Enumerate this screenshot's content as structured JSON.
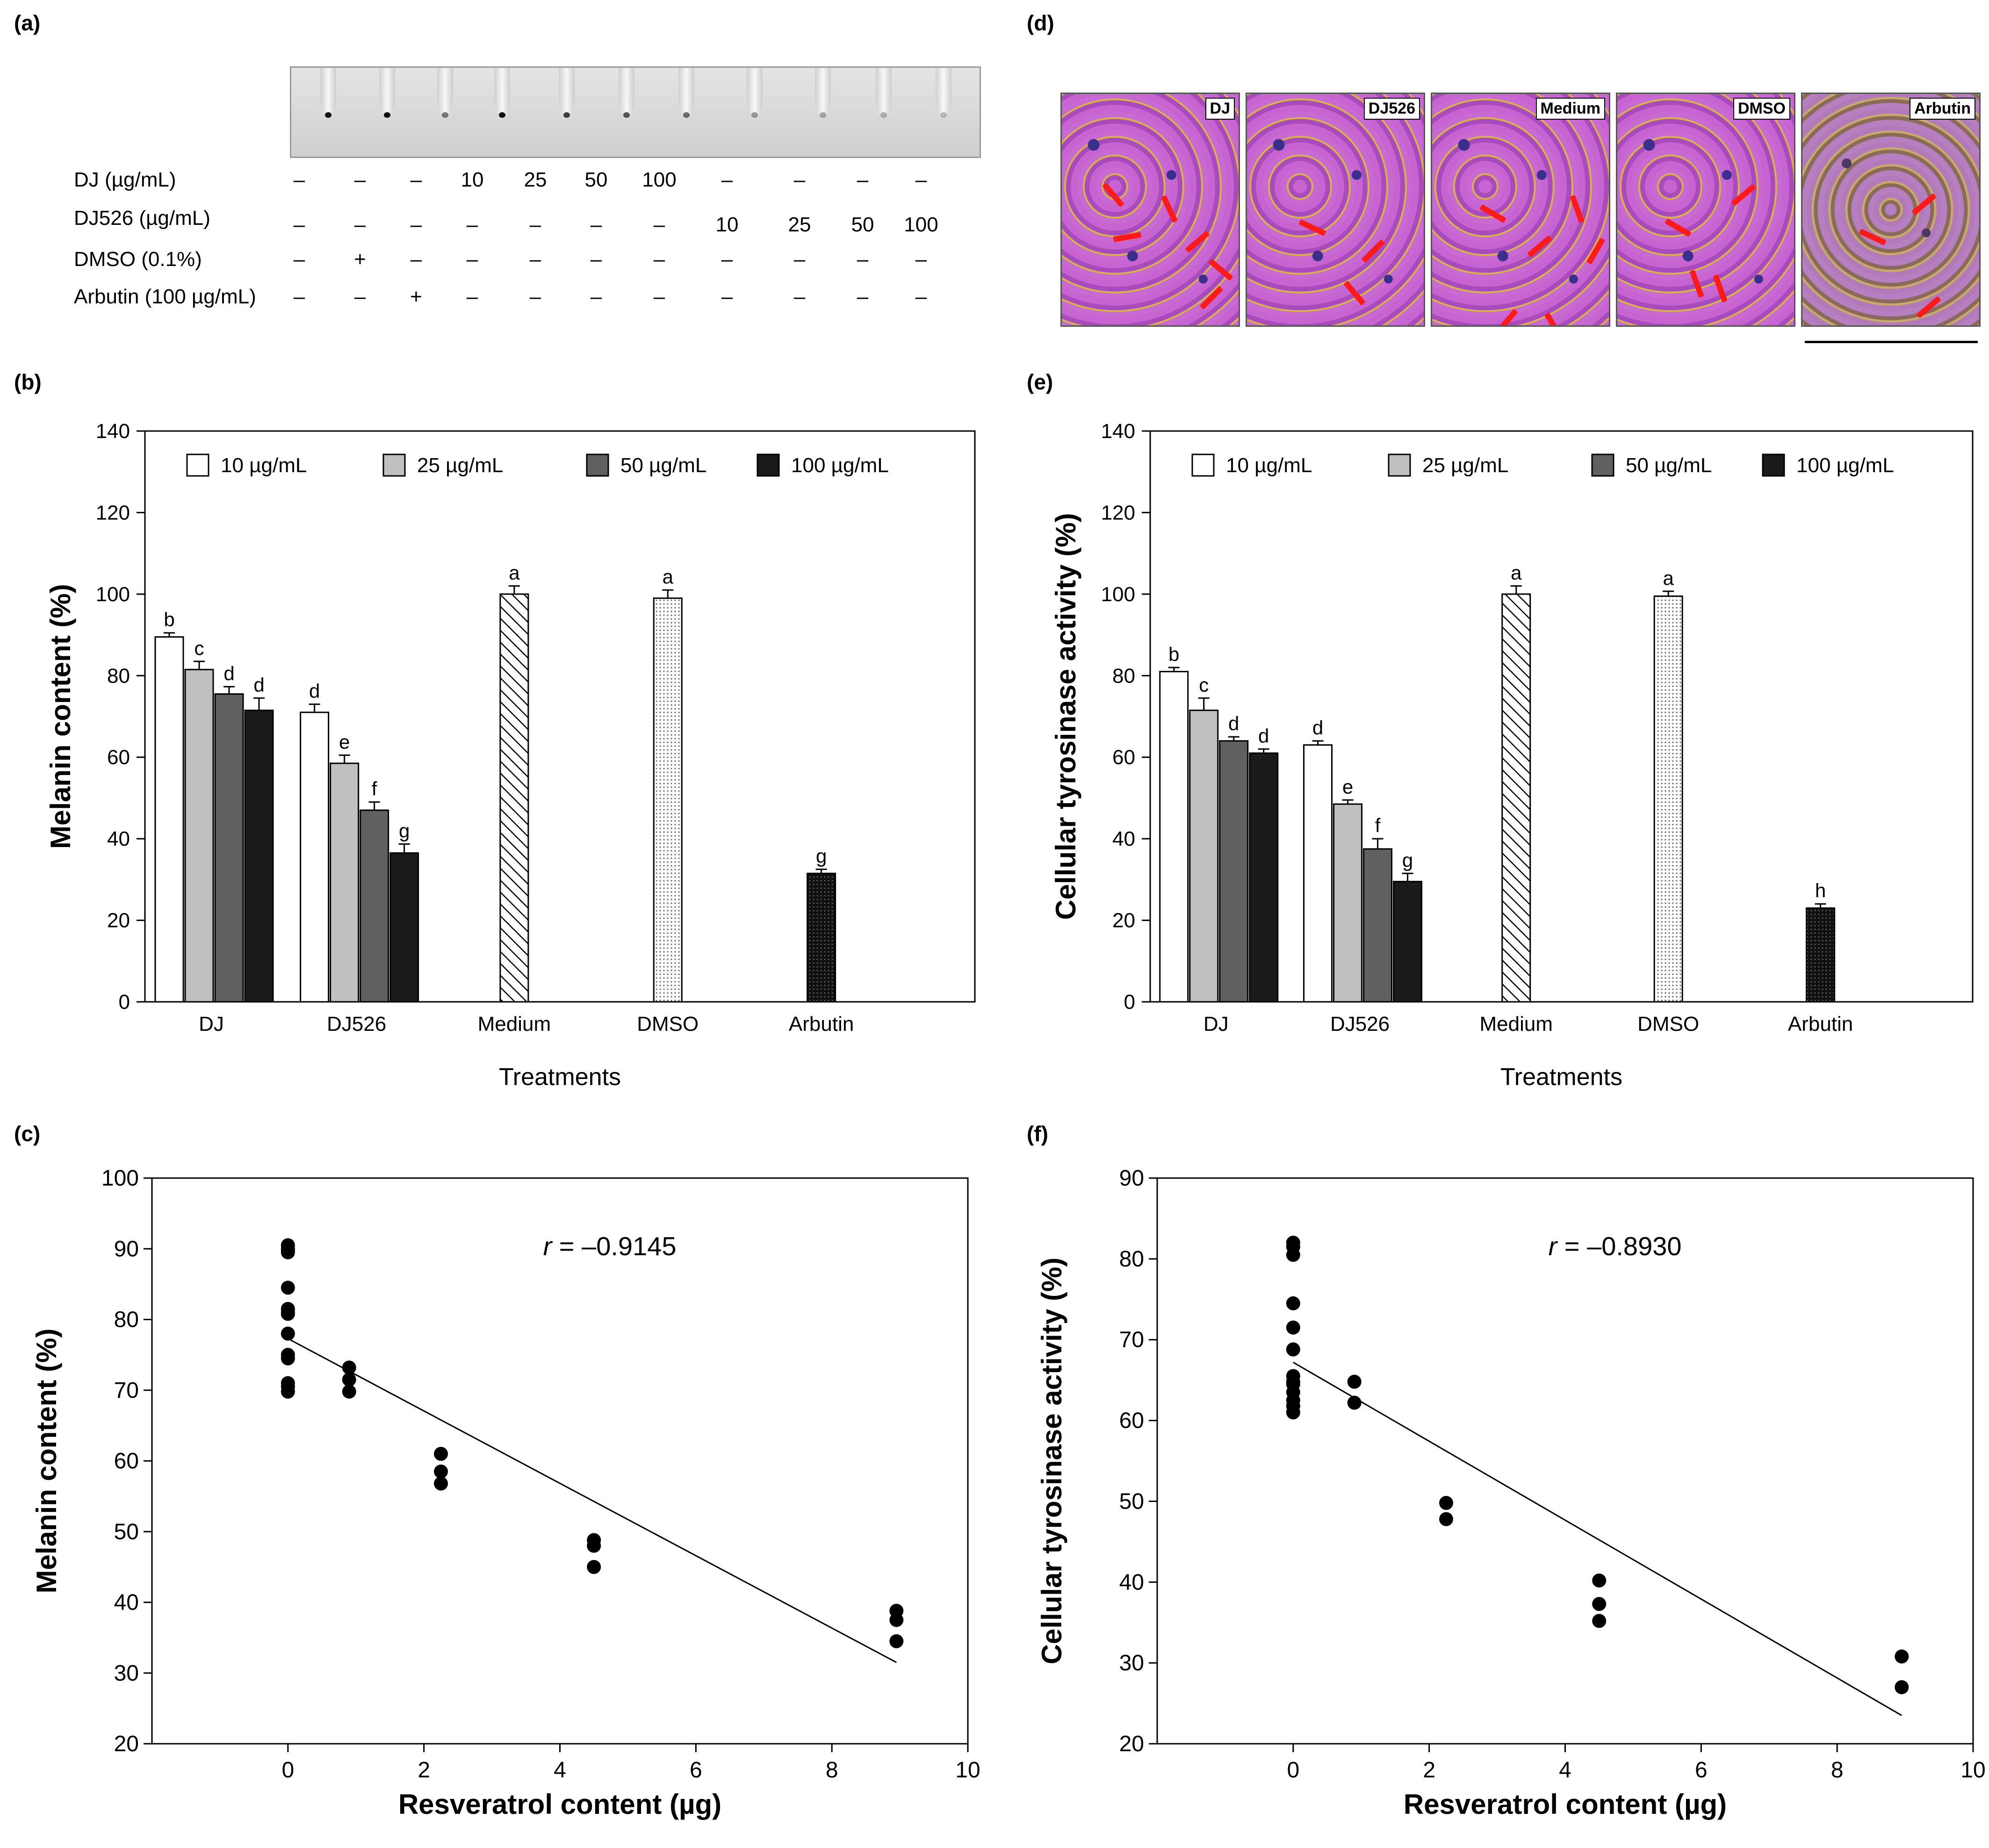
{
  "panel_labels": {
    "a": "(a)",
    "b": "(b)",
    "c": "(c)",
    "d": "(d)",
    "e": "(e)",
    "f": "(f)"
  },
  "tube_table": {
    "rows": [
      {
        "label": "DJ (µg/mL)",
        "cells": [
          "–",
          "–",
          "–",
          "10",
          "25",
          "50",
          "100",
          "–",
          "–",
          "–",
          "–"
        ]
      },
      {
        "label": "DJ526 (µg/mL)",
        "cells": [
          "–",
          "–",
          "–",
          "–",
          "–",
          "–",
          "–",
          "10",
          "25",
          "50",
          "100"
        ]
      },
      {
        "label": "DMSO (0.1%)",
        "cells": [
          "–",
          "+",
          "–",
          "–",
          "–",
          "–",
          "–",
          "–",
          "–",
          "–",
          "–"
        ]
      },
      {
        "label": "Arbutin (100 µg/mL)",
        "cells": [
          "–",
          "–",
          "+",
          "–",
          "–",
          "–",
          "–",
          "–",
          "–",
          "–",
          "–"
        ]
      }
    ]
  },
  "micrographs": {
    "labels": [
      "DJ",
      "DJ526",
      "Medium",
      "DMSO",
      "Arbutin"
    ]
  },
  "colors": {
    "bar_10": "#ffffff",
    "bar_25": "#c0c0c0",
    "bar_50": "#606060",
    "bar_100": "#1a1a1a",
    "arrow": "#ff1a1a"
  },
  "chart_data": [
    {
      "id": "b",
      "type": "bar",
      "title": "",
      "xlabel": "Treatments",
      "ylabel": "Melanin content (%)",
      "ylim": [
        0,
        140
      ],
      "yticks": [
        0,
        20,
        40,
        60,
        80,
        100,
        120,
        140
      ],
      "legend": [
        "10 µg/mL",
        "25 µg/mL",
        "50 µg/mL",
        "100 µg/mL"
      ],
      "legend_position": "top",
      "groups": [
        {
          "name": "DJ",
          "values": [
            89.5,
            81.5,
            75.5,
            71.5
          ],
          "errors": [
            1.0,
            2.0,
            1.8,
            3.0
          ],
          "letters": [
            "b",
            "c",
            "d",
            "d"
          ]
        },
        {
          "name": "DJ526",
          "values": [
            71.0,
            58.5,
            47.0,
            36.5
          ],
          "errors": [
            2.0,
            2.0,
            2.0,
            2.2
          ],
          "letters": [
            "d",
            "e",
            "f",
            "g"
          ]
        },
        {
          "name": "Medium",
          "single": true,
          "pattern": "hatch",
          "value": 100.0,
          "error": 2.0,
          "letter": "a"
        },
        {
          "name": "DMSO",
          "single": true,
          "pattern": "dots",
          "value": 99.0,
          "error": 2.0,
          "letter": "a"
        },
        {
          "name": "Arbutin",
          "single": true,
          "pattern": "dense",
          "value": 31.5,
          "error": 1.0,
          "letter": "g"
        }
      ]
    },
    {
      "id": "e",
      "type": "bar",
      "title": "",
      "xlabel": "Treatments",
      "ylabel": "Cellular tyrosinase activity (%)",
      "ylim": [
        0,
        140
      ],
      "yticks": [
        0,
        20,
        40,
        60,
        80,
        100,
        120,
        140
      ],
      "legend": [
        "10 µg/mL",
        "25 µg/mL",
        "50 µg/mL",
        "100 µg/mL"
      ],
      "legend_position": "top",
      "groups": [
        {
          "name": "DJ",
          "values": [
            81.0,
            71.5,
            64.0,
            61.0
          ],
          "errors": [
            1.0,
            3.0,
            1.0,
            1.0
          ],
          "letters": [
            "b",
            "c",
            "d",
            "d"
          ]
        },
        {
          "name": "DJ526",
          "values": [
            63.0,
            48.5,
            37.5,
            29.5
          ],
          "errors": [
            1.0,
            1.0,
            2.5,
            2.0
          ],
          "letters": [
            "d",
            "e",
            "f",
            "g"
          ]
        },
        {
          "name": "Medium",
          "single": true,
          "pattern": "hatch",
          "value": 100.0,
          "error": 2.0,
          "letter": "a"
        },
        {
          "name": "DMSO",
          "single": true,
          "pattern": "dots",
          "value": 99.5,
          "error": 1.2,
          "letter": "a"
        },
        {
          "name": "Arbutin",
          "single": true,
          "pattern": "dense",
          "value": 23.0,
          "error": 1.0,
          "letter": "h"
        }
      ]
    },
    {
      "id": "c",
      "type": "scatter",
      "title": "",
      "xlabel": "Resveratrol content (µg)",
      "ylabel": "Melanin content (%)",
      "xlim": [
        -2,
        10
      ],
      "ylim": [
        20,
        100
      ],
      "xticks": [
        0,
        2,
        4,
        6,
        8,
        10
      ],
      "yticks": [
        20,
        30,
        40,
        50,
        60,
        70,
        80,
        90,
        100
      ],
      "annotation_r": "r",
      "annotation_value": " = –0.9145",
      "x": [
        0,
        0,
        0,
        0,
        0,
        0,
        0,
        0,
        0,
        0,
        0,
        0,
        0,
        0,
        0.9,
        0.9,
        0.9,
        2.25,
        2.25,
        2.25,
        4.5,
        4.5,
        4.5,
        8.95,
        8.95,
        8.95
      ],
      "y": [
        90.5,
        89.5,
        84.5,
        81.5,
        81,
        78,
        75,
        74.5,
        71,
        70.5,
        69.8,
        89.8,
        90,
        80.8,
        73.2,
        71.5,
        69.8,
        61,
        58.5,
        56.8,
        48.8,
        48,
        45,
        38.8,
        37.5,
        34.5
      ],
      "fit": {
        "x": [
          0,
          8.95
        ],
        "y": [
          77.3,
          31.5
        ]
      }
    },
    {
      "id": "f",
      "type": "scatter",
      "title": "",
      "xlabel": "Resveratrol content (µg)",
      "ylabel": "Cellular tyrosinase activity (%)",
      "xlim": [
        -2,
        10
      ],
      "ylim": [
        20,
        90
      ],
      "xticks": [
        0,
        2,
        4,
        6,
        8,
        10
      ],
      "yticks": [
        20,
        30,
        40,
        50,
        60,
        70,
        80,
        90
      ],
      "annotation_r": "r",
      "annotation_value": " = –0.8930",
      "x": [
        0,
        0,
        0,
        0,
        0,
        0,
        0,
        0,
        0,
        0,
        0,
        0,
        0,
        0.9,
        0.9,
        2.25,
        2.25,
        4.5,
        4.5,
        4.5,
        8.95,
        8.95
      ],
      "y": [
        82,
        81.5,
        80.5,
        74.5,
        71.5,
        68.8,
        65.5,
        64.5,
        63.5,
        62.5,
        61.8,
        61,
        64.8,
        64.8,
        62.2,
        49.8,
        47.8,
        40.2,
        37.3,
        35.2,
        30.8,
        27
      ],
      "fit": {
        "x": [
          0,
          8.95
        ],
        "y": [
          67.2,
          23.5
        ]
      }
    }
  ]
}
